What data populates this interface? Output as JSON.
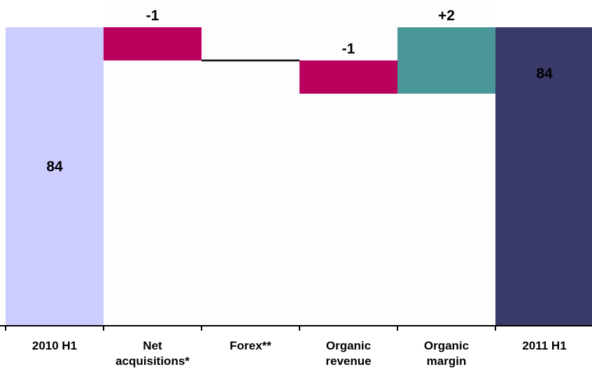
{
  "chart_data": {
    "type": "waterfall",
    "title": "",
    "xlabel": "",
    "ylabel": "",
    "ylim": [
      0,
      100
    ],
    "grid": false,
    "categories": [
      {
        "id": "c1",
        "label_lines": [
          "2010 H1"
        ],
        "kind": "total",
        "value": 84,
        "label": "84",
        "color": "#ccccff"
      },
      {
        "id": "c2",
        "label_lines": [
          "Net",
          "acquisitions*"
        ],
        "kind": "delta",
        "value": -1,
        "label": "-1",
        "color": "#b8005c"
      },
      {
        "id": "c3",
        "label_lines": [
          "Forex**"
        ],
        "kind": "delta",
        "value": 0,
        "label": "",
        "color": "#000000"
      },
      {
        "id": "c4",
        "label_lines": [
          "Organic",
          "revenue"
        ],
        "kind": "delta",
        "value": -1,
        "label": "-1",
        "color": "#b8005c"
      },
      {
        "id": "c5",
        "label_lines": [
          "Organic",
          "margin"
        ],
        "kind": "delta",
        "value": 2,
        "label": "+2",
        "color": "#4a9799"
      },
      {
        "id": "c6",
        "label_lines": [
          "2011 H1"
        ],
        "kind": "total",
        "value": 84,
        "label": "84",
        "color": "#3a3a6a"
      }
    ]
  }
}
